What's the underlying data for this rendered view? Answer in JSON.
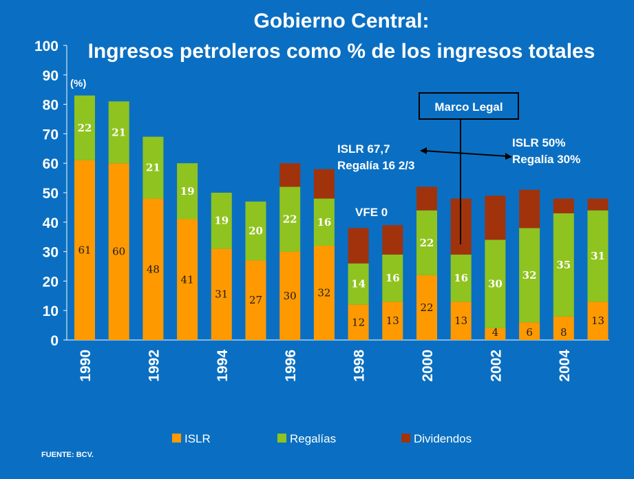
{
  "chart_data": {
    "type": "bar",
    "stacked": true,
    "title": "Gobierno Central:",
    "subtitle": "Ingresos petroleros como % de los ingresos totales",
    "ylabel": "(%)",
    "ylim": [
      0,
      100
    ],
    "yticks": [
      0,
      10,
      20,
      30,
      40,
      50,
      60,
      70,
      80,
      90,
      100
    ],
    "categories": [
      1990,
      1991,
      1992,
      1993,
      1994,
      1995,
      1996,
      1997,
      1998,
      1999,
      2000,
      2001,
      2002,
      2003,
      2004,
      2005
    ],
    "xtick_labels": [
      "1990",
      "1992",
      "1994",
      "1996",
      "1998",
      "2000",
      "2002",
      "2004"
    ],
    "series": [
      {
        "name": "ISLR",
        "color": "#ff9900",
        "values": [
          61,
          60,
          48,
          41,
          31,
          27,
          30,
          32,
          12,
          13,
          22,
          13,
          4,
          6,
          8,
          13
        ],
        "labels": [
          "61",
          "60",
          "48",
          "41",
          "31",
          "27",
          "30",
          "32",
          "12",
          "13",
          "22",
          "13",
          "4",
          "6",
          "8",
          "13"
        ]
      },
      {
        "name": "Regalias",
        "color": "#8fc31f",
        "values": [
          22,
          21,
          21,
          19,
          19,
          20,
          22,
          16,
          14,
          16,
          22,
          16,
          30,
          32,
          35,
          31
        ],
        "labels": [
          "22",
          "21",
          "21",
          "19",
          "19",
          "20",
          "22",
          "16",
          "14",
          "16",
          "22",
          "16",
          "30",
          "32",
          "35",
          "31"
        ]
      },
      {
        "name": "Dividendos",
        "color": "#a0330c",
        "values": [
          0,
          0,
          0,
          0,
          0,
          0,
          8,
          10,
          12,
          10,
          8,
          19,
          15,
          13,
          5,
          4
        ],
        "labels": [
          "",
          "",
          "",
          "",
          "",
          "",
          "",
          "",
          "",
          "",
          "",
          "",
          "",
          "",
          "",
          ""
        ]
      }
    ],
    "legend": {
      "placement": "bottom",
      "items": [
        "ISLR",
        "Regalías",
        "Dividendos"
      ]
    },
    "annotations": {
      "marco_legal": "Marco Legal",
      "left_regime_line1": "ISLR 67,7",
      "left_regime_line2": "Regalía 16 2/3",
      "right_regime_line1": "ISLR 50%",
      "right_regime_line2": "Regalía 30%",
      "vfe": "VFE  0"
    },
    "source": "FUENTE: BCV."
  }
}
